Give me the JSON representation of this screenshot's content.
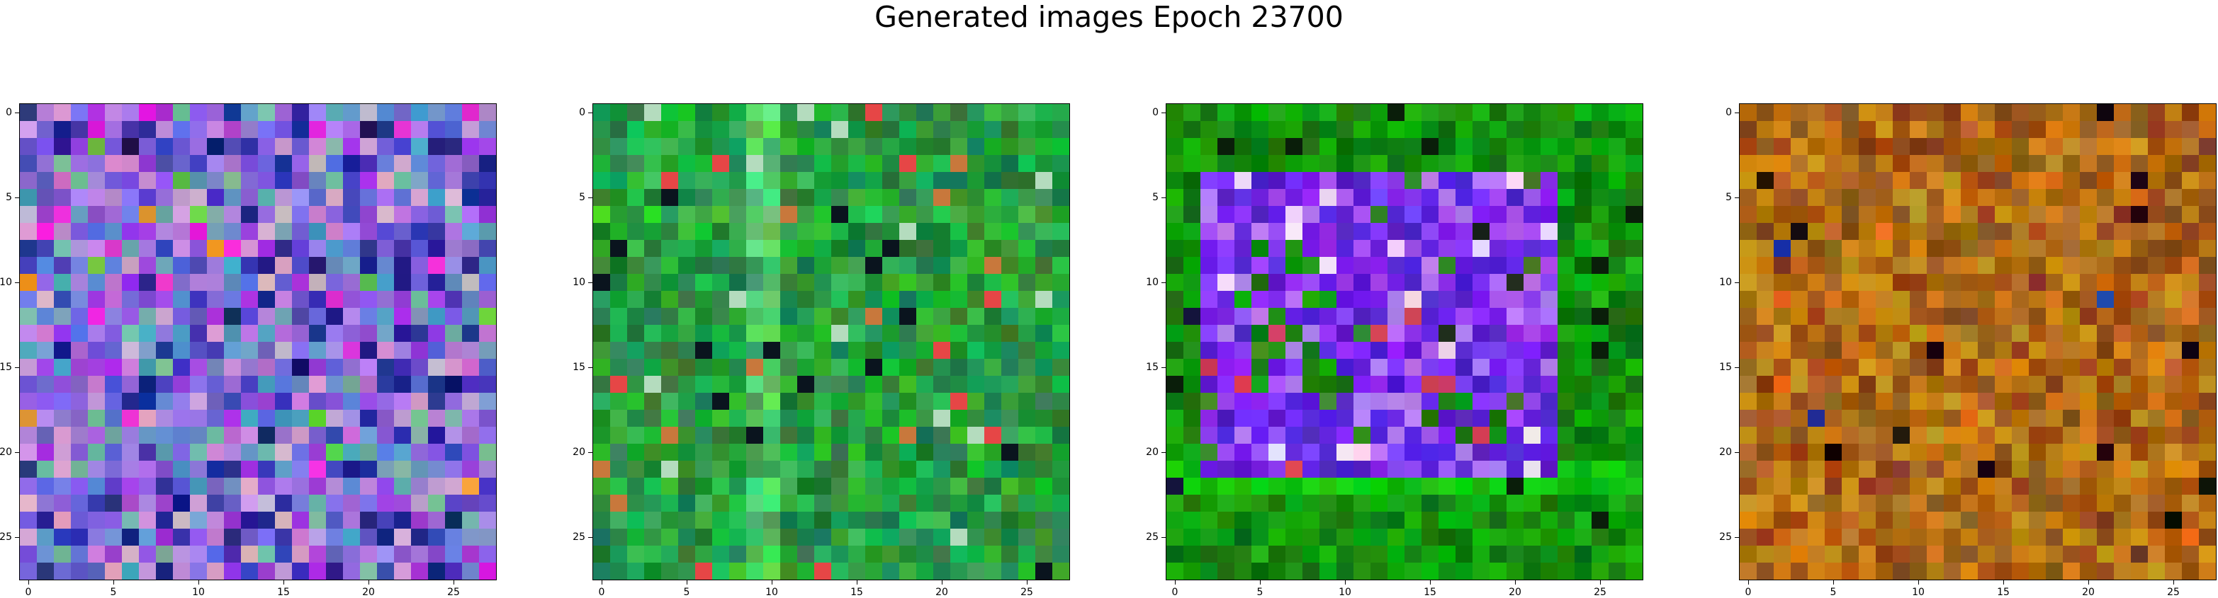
{
  "figure": {
    "title": "Generated images Epoch 23700"
  },
  "panels": [
    {
      "id": "panel-1",
      "palette": "purple-mix"
    },
    {
      "id": "panel-2",
      "palette": "green"
    },
    {
      "id": "panel-3",
      "palette": "green-purple-square"
    },
    {
      "id": "panel-4",
      "palette": "orange-brown"
    }
  ],
  "axes": {
    "ticks": [
      "0",
      "5",
      "10",
      "15",
      "20",
      "25"
    ],
    "tick_values": [
      0,
      5,
      10,
      15,
      20,
      25
    ],
    "grid_size": 28
  }
}
